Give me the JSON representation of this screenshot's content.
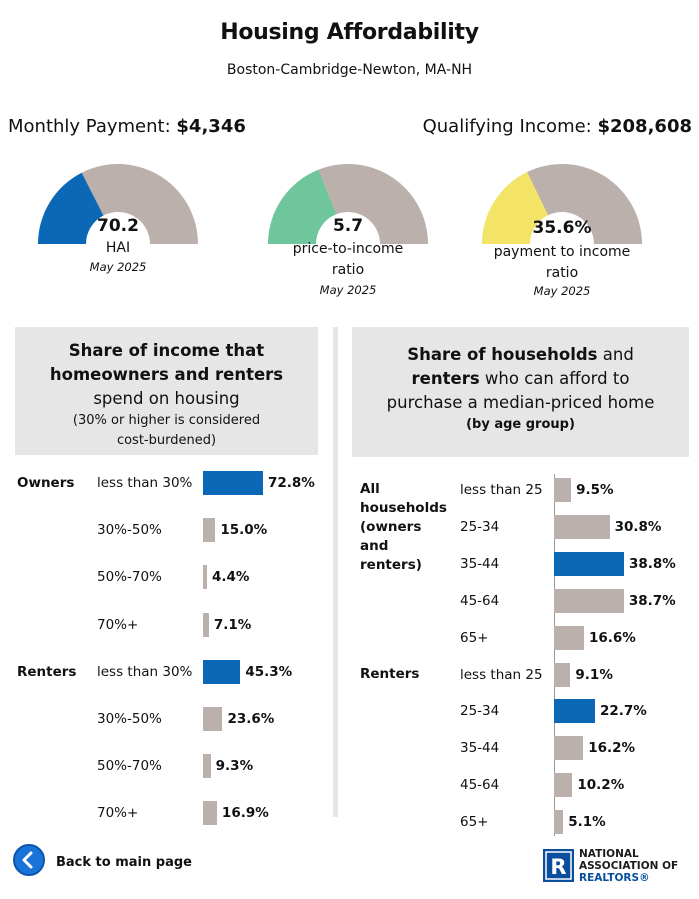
{
  "header": {
    "title": "Housing Affordability",
    "subtitle": "Boston-Cambridge-Newton, MA-NH"
  },
  "stats": {
    "monthly_label": "Monthly Payment:",
    "monthly_value": "$4,346",
    "income_label": "Qualifying Income:",
    "income_value": "$208,608"
  },
  "gauges": [
    {
      "value": "70.2",
      "label_lines": [
        "HAI"
      ],
      "date": "May 2025",
      "fill_fraction": 0.35,
      "color": "#0a68b6"
    },
    {
      "value": "5.7",
      "label_lines": [
        "price-to-income",
        "ratio"
      ],
      "date": "May 2025",
      "fill_fraction": 0.38,
      "color": "#6fc59c"
    },
    {
      "value": "35.6%",
      "label_lines": [
        "payment to income",
        "ratio"
      ],
      "date": "May 2025",
      "fill_fraction": 0.356,
      "color": "#f3e468"
    }
  ],
  "colors": {
    "highlight": "#0a68b6",
    "neutral": "#bbb0ab",
    "panel": "#e6e6e6",
    "gauge_track": "#bbb0ab"
  },
  "left_panel": {
    "head_line1": "Share of income that",
    "head_line2": "homeowners and renters",
    "head_line3": "spend on housing",
    "head_line4": "(30% or higher is considered",
    "head_line5": "cost-burdened)"
  },
  "right_panel": {
    "head_line1_bold": "Share of households",
    "head_line1_rest": " and",
    "head_line2_bold": "renters",
    "head_line2_rest": " who can afford to",
    "head_line3": "purchase a median-priced home",
    "head_line4": "(by age group)"
  },
  "chart_data": [
    {
      "type": "bar",
      "orientation": "horizontal",
      "title": "Share of income that homeowners and renters spend on housing",
      "groups": [
        {
          "name": "Owners",
          "categories": [
            "less than 30%",
            "30%-50%",
            "50%-70%",
            "70%+"
          ],
          "values": [
            72.8,
            15.0,
            4.4,
            7.1
          ],
          "labels": [
            "72.8%",
            "15.0%",
            "4.4%",
            "7.1%"
          ],
          "highlight": [
            true,
            false,
            false,
            false
          ]
        },
        {
          "name": "Renters",
          "categories": [
            "less than 30%",
            "30%-50%",
            "50%-70%",
            "70%+"
          ],
          "values": [
            45.3,
            23.6,
            9.3,
            16.9
          ],
          "labels": [
            "45.3%",
            "23.6%",
            "9.3%",
            "16.9%"
          ],
          "highlight": [
            true,
            false,
            false,
            false
          ]
        }
      ],
      "xlim": [
        0,
        100
      ]
    },
    {
      "type": "bar",
      "orientation": "horizontal",
      "title": "Share of households and renters who can afford to purchase a median-priced home (by age group)",
      "groups": [
        {
          "name": "All households (owners and renters)",
          "name_lines": [
            "All",
            "households",
            "(owners",
            "and",
            "renters)"
          ],
          "categories": [
            "less than 25",
            "25-34",
            "35-44",
            "45-64",
            "65+"
          ],
          "values": [
            9.5,
            30.8,
            38.8,
            38.7,
            16.6
          ],
          "labels": [
            "9.5%",
            "30.8%",
            "38.8%",
            "38.7%",
            "16.6%"
          ],
          "highlight": [
            false,
            false,
            true,
            false,
            false
          ]
        },
        {
          "name": "Renters",
          "name_lines": [
            "Renters"
          ],
          "categories": [
            "less than 25",
            "25-34",
            "35-44",
            "45-64",
            "65+"
          ],
          "values": [
            9.1,
            22.7,
            16.2,
            10.2,
            5.1
          ],
          "labels": [
            "9.1%",
            "22.7%",
            "16.2%",
            "10.2%",
            "5.1%"
          ],
          "highlight": [
            false,
            true,
            false,
            false,
            false
          ]
        }
      ],
      "xlim": [
        0,
        100
      ]
    }
  ],
  "footer": {
    "back_label": "Back to main page",
    "logo_line1": "NATIONAL",
    "logo_line2": "ASSOCIATION OF",
    "logo_line3": "REALTORS®",
    "logo_mark": "R"
  }
}
